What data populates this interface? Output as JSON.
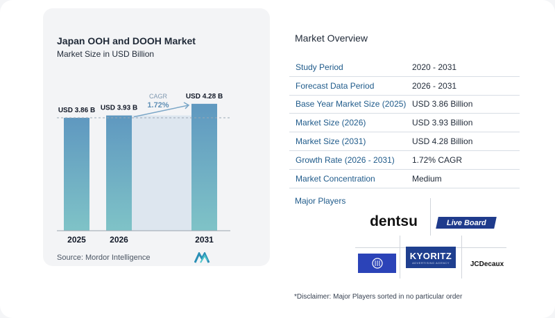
{
  "chart": {
    "title": "Japan OOH and DOOH Market",
    "subtitle": "Market Size in USD Billion",
    "cagr_label": "CAGR",
    "cagr_value": "1.72%",
    "source": "Source:  Mordor Intelligence"
  },
  "chart_data": {
    "type": "bar",
    "categories": [
      "2025",
      "2026",
      "2031"
    ],
    "values": [
      3.86,
      3.93,
      4.28
    ],
    "data_labels": [
      "USD 3.86 B",
      "USD 3.93 B",
      "USD 4.28 B"
    ],
    "title": "Japan OOH and DOOH Market",
    "subtitle": "Market Size in USD Billion",
    "xlabel": "",
    "ylabel": "",
    "annotation": "CAGR 1.72%",
    "grid": false,
    "colors": {
      "bar_top": "#5f98c0",
      "bar_bottom": "#7fc3c7",
      "band": "#dde6ef",
      "arrow": "#7aa6c7"
    }
  },
  "overview": {
    "title": "Market Overview",
    "rows": [
      {
        "label": "Study Period",
        "value": "2020 - 2031"
      },
      {
        "label": "Forecast Data Period",
        "value": "2026 - 2031"
      },
      {
        "label": "Base Year Market Size (2025)",
        "value": "USD 3.86 Billion"
      },
      {
        "label": "Market Size (2026)",
        "value": "USD 3.93 Billion"
      },
      {
        "label": "Market Size (2031)",
        "value": "USD 4.28 Billion"
      },
      {
        "label": "Growth Rate (2026 - 2031)",
        "value": "1.72% CAGR"
      },
      {
        "label": "Market Concentration",
        "value": "Medium"
      }
    ]
  },
  "players": {
    "title": "Major Players",
    "names": [
      "dentsu",
      "Live Board",
      "KYORITZ",
      "ADVERTISING AGENCY",
      "JCDecaux"
    ]
  },
  "disclaimer": "*Disclaimer: Major Players sorted in no particular order"
}
